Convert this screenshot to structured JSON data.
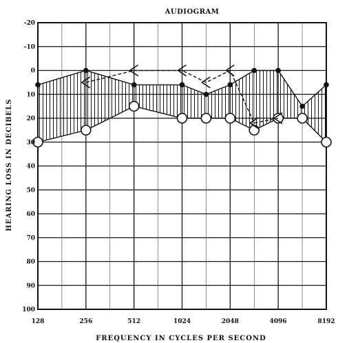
{
  "chart_data": {
    "type": "line",
    "title": "AUDIOGRAM",
    "xlabel": "FREQUENCY IN CYCLES PER SECOND",
    "ylabel": "HEARING LOSS IN DECIBELS",
    "x_ticks": [
      "128",
      "256",
      "512",
      "1024",
      "2048",
      "4096",
      "8192"
    ],
    "y_ticks": [
      "-20",
      "-10",
      "0",
      "10",
      "20",
      "30",
      "40",
      "50",
      "60",
      "70",
      "80",
      "90",
      "100"
    ],
    "ylim": [
      -20,
      100
    ],
    "y_inverted": true,
    "x_scale": "log2",
    "grid": "on",
    "shaded_band": "between upper and lower threshold curves",
    "series": [
      {
        "marker": "filled-dot",
        "line": "solid",
        "x": [
          128,
          256,
          512,
          1024,
          1448,
          2048,
          2896,
          4096,
          5793,
          8192
        ],
        "y": [
          6,
          0,
          6,
          6,
          10,
          6,
          0,
          0,
          15,
          6
        ]
      },
      {
        "marker": "open-circle",
        "line": "solid",
        "x": [
          128,
          256,
          512,
          1024,
          1448,
          2048,
          2896,
          4096,
          5793,
          8192
        ],
        "y": [
          30,
          25,
          15,
          20,
          20,
          20,
          25,
          20,
          20,
          30
        ]
      },
      {
        "marker": "less-than",
        "line": "dashed",
        "x": [
          256,
          512,
          1024,
          1448,
          2048,
          2896,
          4096
        ],
        "y": [
          5,
          0,
          0,
          5,
          0,
          22,
          20
        ]
      }
    ]
  }
}
